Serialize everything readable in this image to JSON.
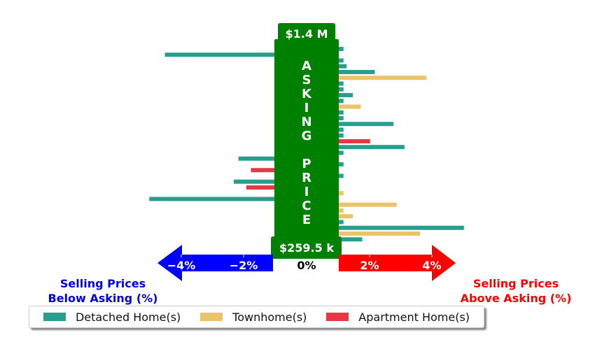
{
  "chart_data": {
    "type": "bar",
    "orientation": "horizontal",
    "center_label": "ASKING PRICE",
    "top_price": "$1.4 M",
    "bottom_price": "$259.5 k",
    "x_ticks": [
      {
        "value": -4,
        "label": "−4%"
      },
      {
        "value": -2,
        "label": "−2%"
      },
      {
        "value": 0,
        "label": "0%"
      },
      {
        "value": 2,
        "label": "2%"
      },
      {
        "value": 4,
        "label": "4%"
      }
    ],
    "xlim": [
      -5,
      5
    ],
    "left_note": [
      "Selling Prices",
      "Below Asking (%)"
    ],
    "right_note": [
      "Selling Prices",
      "Above Asking (%)"
    ],
    "series": [
      {
        "name": "Detached Home(s)",
        "color": "#2a9d8f"
      },
      {
        "name": "Townhome(s)",
        "color": "#e9c46a"
      },
      {
        "name": "Apartment Home(s)",
        "color": "#e63946"
      }
    ],
    "bars": [
      {
        "series": 0,
        "value": 0.15
      },
      {
        "series": 0,
        "value": -3.5
      },
      {
        "series": 0,
        "value": 0.15
      },
      {
        "series": 0,
        "value": 0.25
      },
      {
        "series": 0,
        "value": 1.15
      },
      {
        "series": 1,
        "value": 2.8
      },
      {
        "series": 0,
        "value": 0.15
      },
      {
        "series": 0,
        "value": 0.15
      },
      {
        "series": 0,
        "value": 0.45
      },
      {
        "series": 0,
        "value": 0.15
      },
      {
        "series": 1,
        "value": 0.7
      },
      {
        "series": 0,
        "value": 0.15
      },
      {
        "series": 0,
        "value": 0.15
      },
      {
        "series": 0,
        "value": 1.75
      },
      {
        "series": 0,
        "value": 0.15
      },
      {
        "series": 0,
        "value": 0.15
      },
      {
        "series": 2,
        "value": 1.0
      },
      {
        "series": 0,
        "value": 2.1
      },
      {
        "series": 0,
        "value": 0.15
      },
      {
        "series": 0,
        "value": -1.15
      },
      {
        "series": 0,
        "value": 0.15
      },
      {
        "series": 2,
        "value": -0.75
      },
      {
        "series": 0,
        "value": 0.15
      },
      {
        "series": 0,
        "value": -1.3
      },
      {
        "series": 2,
        "value": -0.9
      },
      {
        "series": 1,
        "value": 0.15
      },
      {
        "series": 0,
        "value": -4.0
      },
      {
        "series": 1,
        "value": 1.85
      },
      {
        "series": 1,
        "value": 0.15
      },
      {
        "series": 1,
        "value": 0.45
      },
      {
        "series": 0,
        "value": 0.15
      },
      {
        "series": 0,
        "value": 4.0
      },
      {
        "series": 1,
        "value": 2.6
      },
      {
        "series": 0,
        "value": 0.75
      }
    ],
    "colors": {
      "center_band": "#008000",
      "left_arrow": "#0000ff",
      "right_arrow": "#ff0000",
      "left_note": "#0000e0",
      "right_note": "#ff0000"
    }
  }
}
